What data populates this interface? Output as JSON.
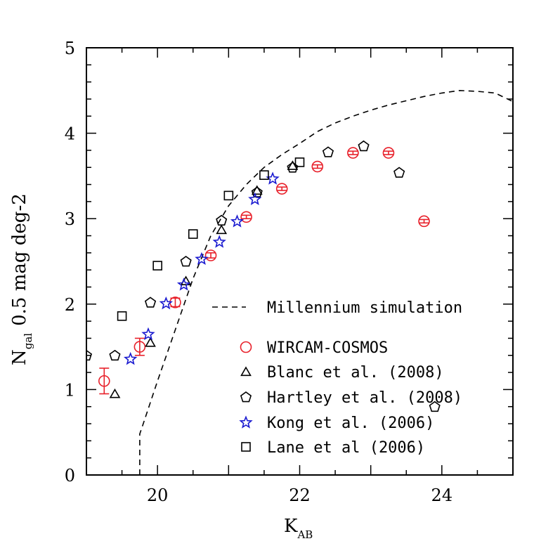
{
  "chart_data": {
    "type": "scatter",
    "xlabel": "K",
    "xlabel_sub": "AB",
    "ylabel": "N",
    "ylabel_sub": "gal",
    "ylabel_rest": "0.5 mag deg-2",
    "xlim": [
      19.0,
      25.0
    ],
    "ylim": [
      0,
      5
    ],
    "x_ticks": [
      20,
      22,
      24
    ],
    "x_tick_labels": [
      "20",
      "22",
      "24"
    ],
    "y_ticks": [
      0,
      1,
      2,
      3,
      4,
      5
    ],
    "y_tick_labels": [
      "0",
      "1",
      "2",
      "3",
      "4",
      "5"
    ],
    "grid": false,
    "legend_position": "lower-right",
    "series": [
      {
        "name": "Millennium simulation",
        "marker": "dashed-line",
        "color": "#000000",
        "x": [
          19.75,
          19.75,
          19.8,
          20.0,
          20.25,
          20.5,
          20.75,
          21.0,
          21.25,
          21.5,
          21.75,
          22.0,
          22.25,
          22.5,
          22.75,
          23.0,
          23.25,
          23.5,
          23.75,
          24.0,
          24.25,
          24.5,
          24.75,
          25.0
        ],
        "y": [
          0.0,
          0.48,
          0.6,
          1.1,
          1.7,
          2.3,
          2.8,
          3.15,
          3.4,
          3.6,
          3.75,
          3.88,
          4.02,
          4.12,
          4.2,
          4.27,
          4.33,
          4.38,
          4.43,
          4.47,
          4.5,
          4.49,
          4.47,
          4.37
        ]
      },
      {
        "name": "WIRCAM-COSMOS",
        "marker": "circle",
        "color": "#e8202a",
        "x": [
          19.25,
          19.75,
          20.25,
          20.75,
          21.25,
          21.75,
          22.25,
          22.75,
          23.25,
          23.75
        ],
        "y": [
          1.1,
          1.5,
          2.02,
          2.57,
          3.02,
          3.35,
          3.61,
          3.77,
          3.77,
          2.97
        ],
        "yerr": [
          0.15,
          0.1,
          0.05,
          0.03,
          0.02,
          0.02,
          0.02,
          0.02,
          0.02,
          0.02
        ]
      },
      {
        "name": "Blanc et al. (2008)",
        "marker": "triangle",
        "color": "#000000",
        "x": [
          19.4,
          19.9,
          20.4,
          20.9,
          21.4,
          21.9
        ],
        "y": [
          0.95,
          1.55,
          2.27,
          2.87,
          3.33,
          3.62
        ]
      },
      {
        "name": "Hartley et al. (2008)",
        "marker": "pentagon",
        "color": "#000000",
        "x": [
          19.0,
          19.4,
          19.9,
          20.4,
          20.9,
          21.4,
          21.9,
          22.4,
          22.9,
          23.4,
          23.9
        ],
        "y": [
          1.4,
          1.4,
          2.02,
          2.5,
          2.98,
          3.31,
          3.6,
          3.78,
          3.85,
          3.54,
          0.8
        ]
      },
      {
        "name": "Kong et al. (2006)",
        "marker": "star",
        "color": "#1a1ad0",
        "x": [
          19.62,
          19.87,
          20.12,
          20.37,
          20.62,
          20.87,
          21.12,
          21.37,
          21.62
        ],
        "y": [
          1.36,
          1.65,
          2.01,
          2.23,
          2.53,
          2.73,
          2.97,
          3.23,
          3.47
        ]
      },
      {
        "name": "Lane et al (2006)",
        "marker": "square",
        "color": "#000000",
        "x": [
          19.5,
          20.0,
          20.5,
          21.0,
          21.5,
          22.0
        ],
        "y": [
          1.86,
          2.45,
          2.82,
          3.27,
          3.51,
          3.66
        ]
      }
    ]
  }
}
